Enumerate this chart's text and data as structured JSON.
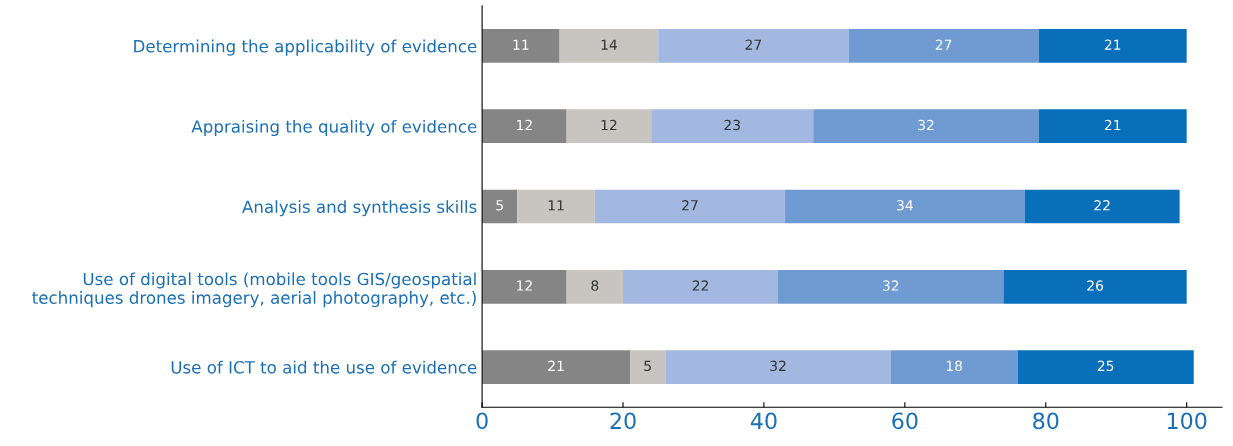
{
  "chart_data": {
    "type": "bar",
    "orientation": "horizontal",
    "stacked": true,
    "data_labels": true,
    "grid": false,
    "legend": false,
    "categories": [
      "Determining the applicability of evidence",
      "Appraising the quality of evidence",
      "Analysis and synthesis skills",
      "Use of digital tools (mobile tools GIS/geospatial\ntechniques drones imagery, aerial photography, etc.)",
      "Use of ICT to aid the use of evidence"
    ],
    "series": [
      {
        "color": "#858585",
        "values": [
          11,
          12,
          5,
          12,
          21
        ]
      },
      {
        "color": "#c8c4c0",
        "values": [
          14,
          12,
          11,
          8,
          5
        ]
      },
      {
        "color": "#a2b8e0",
        "values": [
          27,
          23,
          27,
          22,
          32
        ]
      },
      {
        "color": "#6f9bd2",
        "values": [
          27,
          32,
          34,
          32,
          18
        ]
      },
      {
        "color": "#0a6fbb",
        "values": [
          21,
          21,
          22,
          26,
          25
        ]
      }
    ],
    "xlim": [
      0,
      105
    ],
    "xticks": [
      0,
      20,
      40,
      60,
      80,
      100
    ]
  }
}
